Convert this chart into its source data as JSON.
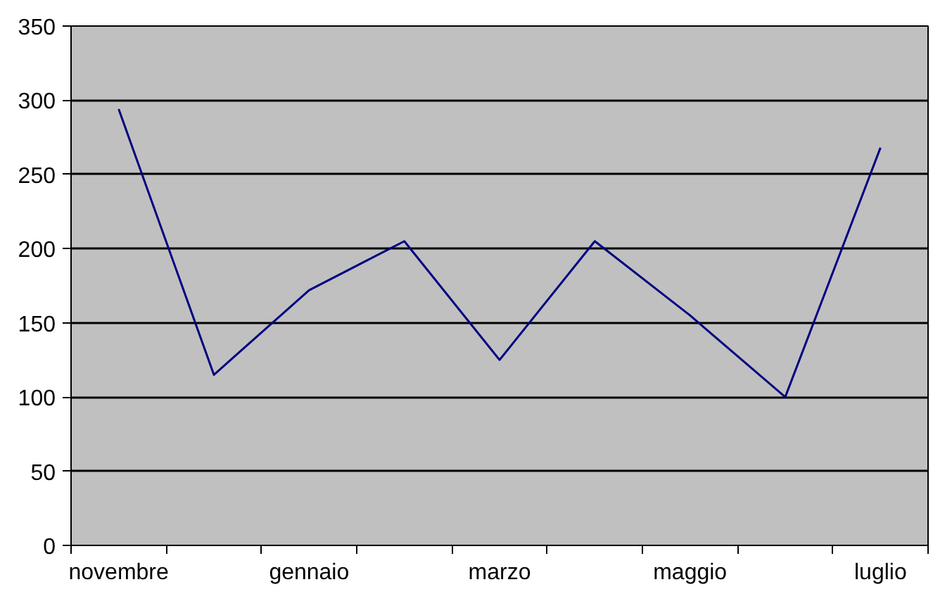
{
  "chart_data": {
    "type": "line",
    "categories": [
      "novembre",
      null,
      "gennaio",
      null,
      "marzo",
      null,
      "maggio",
      null,
      "luglio"
    ],
    "series": [
      {
        "color": "#000080",
        "values": [
          294,
          115,
          172,
          205,
          125,
          205,
          155,
          100,
          268
        ]
      }
    ],
    "ylim": [
      0,
      350
    ],
    "yticks": [
      0,
      50,
      100,
      150,
      200,
      250,
      300,
      350
    ],
    "grid": "y",
    "marker": "none",
    "line_style": "solid"
  }
}
